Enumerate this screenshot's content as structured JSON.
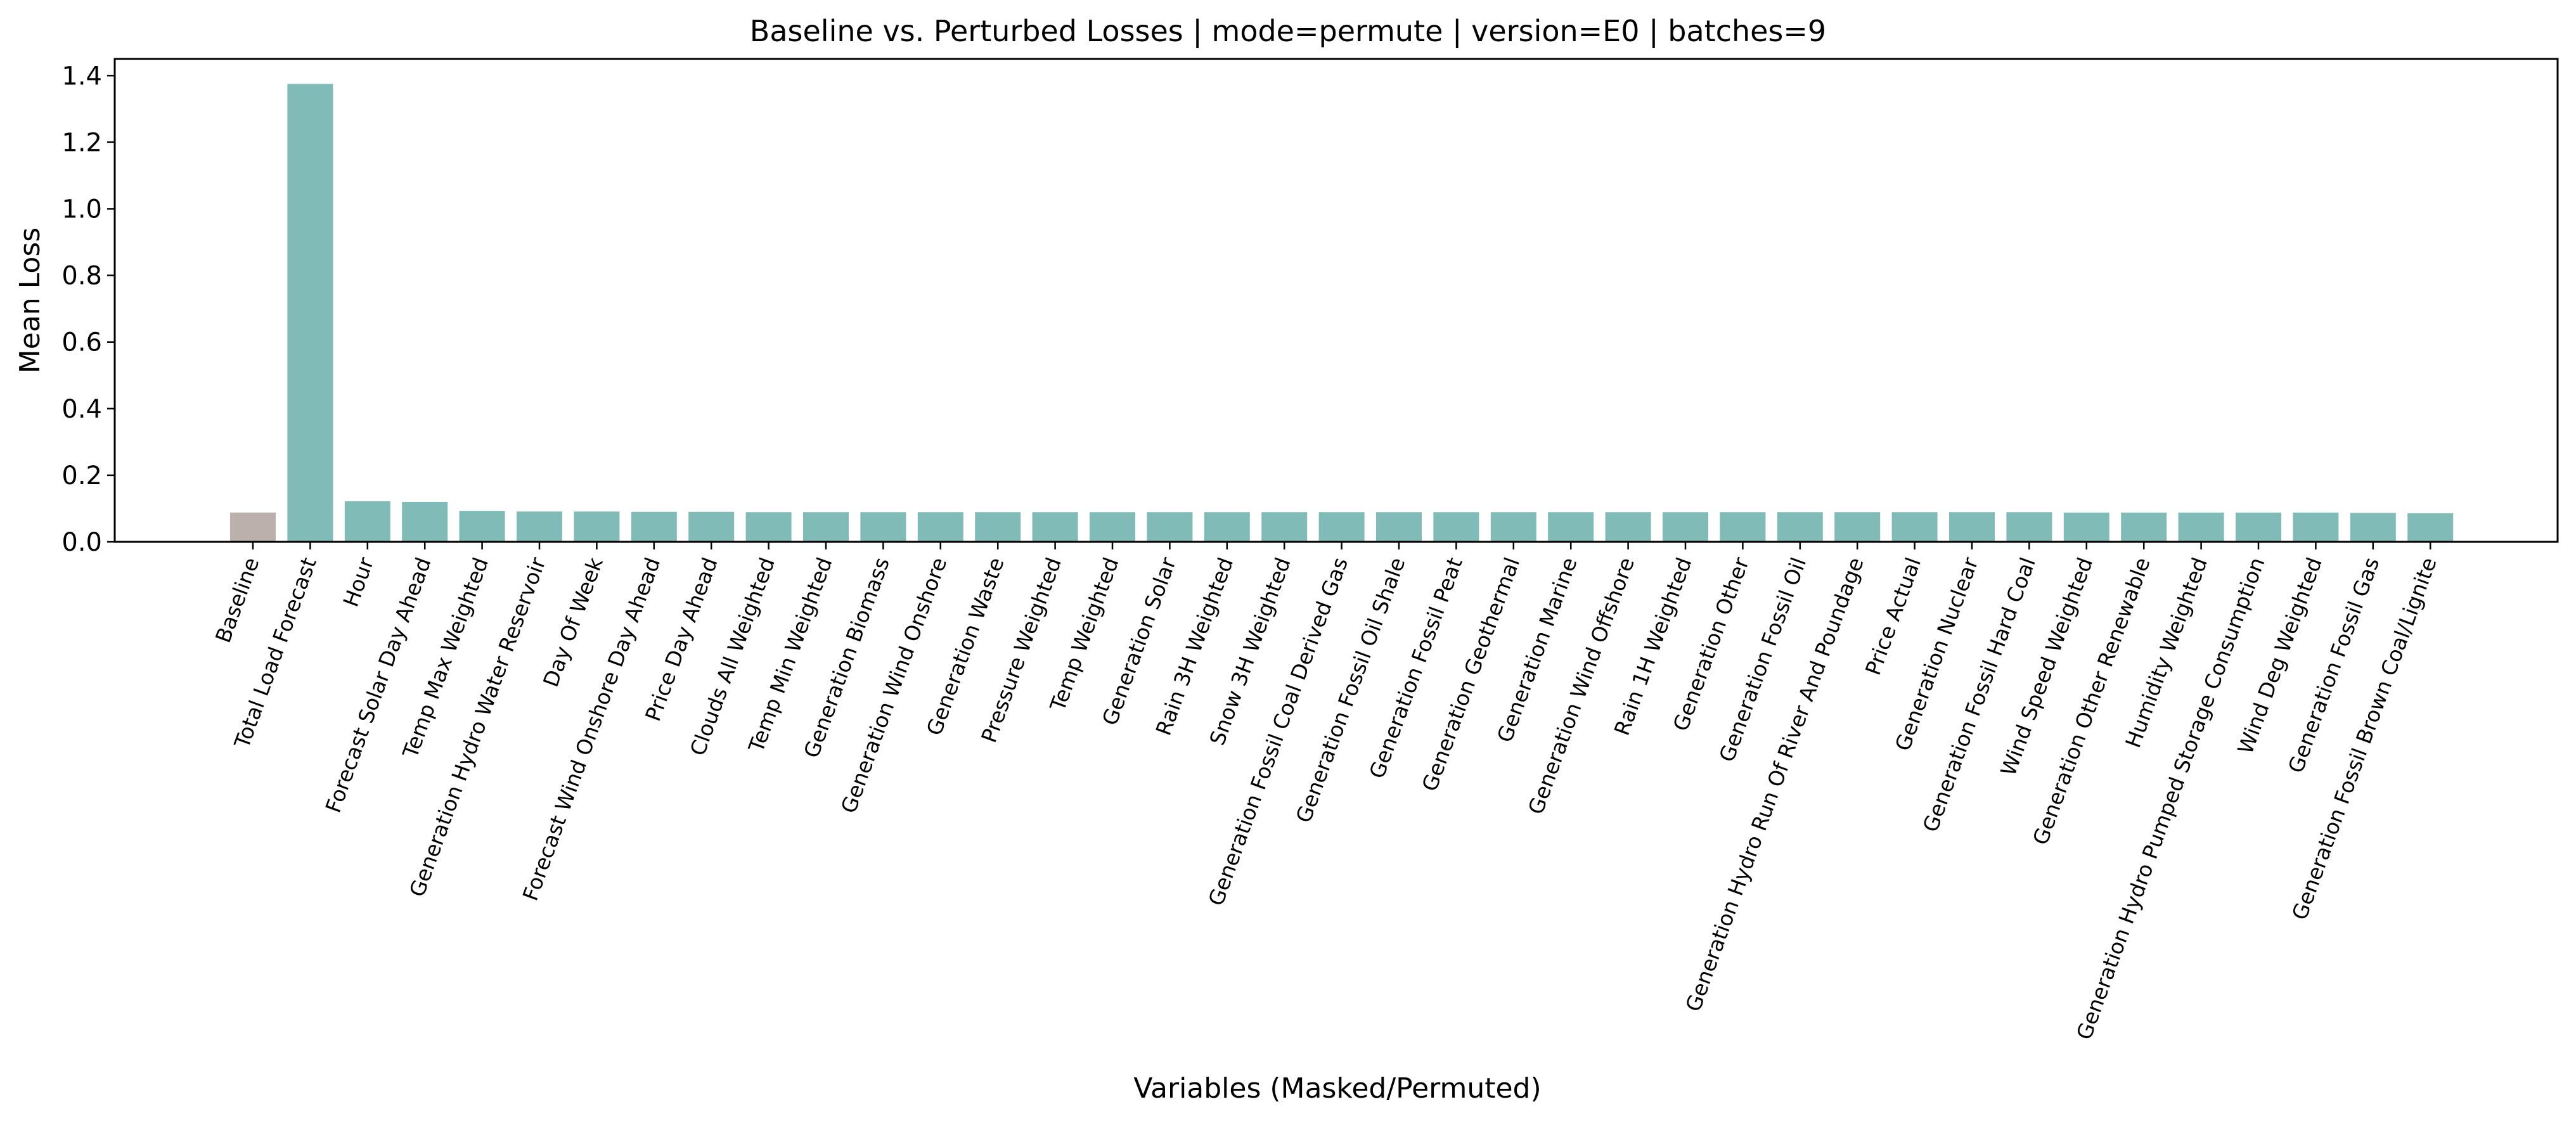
{
  "chart_data": {
    "type": "bar",
    "title": "Baseline vs. Perturbed Losses | mode=permute | version=E0 | batches=9",
    "xlabel": "Variables (Masked/Permuted)",
    "ylabel": "Mean Loss",
    "ylim": [
      0,
      1.45
    ],
    "yticks": [
      "0.0",
      "0.2",
      "0.4",
      "0.6",
      "0.8",
      "1.0",
      "1.2",
      "1.4"
    ],
    "grid": false,
    "legend": "none",
    "colors": {
      "baseline": "#bcb0ac",
      "perturbed": "#80bbb7"
    },
    "categories": [
      "Baseline",
      "Total Load Forecast",
      "Hour",
      "Forecast Solar Day Ahead",
      "Temp Max Weighted",
      "Generation Hydro Water Reservoir",
      "Day Of Week",
      "Forecast Wind Onshore Day Ahead",
      "Price Day Ahead",
      "Clouds All Weighted",
      "Temp Min Weighted",
      "Generation Biomass",
      "Generation Wind Onshore",
      "Generation Waste",
      "Pressure Weighted",
      "Temp Weighted",
      "Generation Solar",
      "Rain 3H Weighted",
      "Snow 3H Weighted",
      "Generation Fossil Coal Derived Gas",
      "Generation Fossil Oil Shale",
      "Generation Fossil Peat",
      "Generation Geothermal",
      "Generation Marine",
      "Generation Wind Offshore",
      "Rain 1H Weighted",
      "Generation Other",
      "Generation Fossil Oil",
      "Generation Hydro Run Of River And Poundage",
      "Price Actual",
      "Generation Nuclear",
      "Generation Fossil Hard Coal",
      "Wind Speed Weighted",
      "Generation Other Renewable",
      "Humidity Weighted",
      "Generation Hydro Pumped Storage Consumption",
      "Wind Deg Weighted",
      "Generation Fossil Gas",
      "Generation Fossil Brown Coal/Lignite"
    ],
    "values": [
      0.088,
      1.375,
      0.122,
      0.12,
      0.093,
      0.091,
      0.091,
      0.09,
      0.09,
      0.089,
      0.089,
      0.089,
      0.089,
      0.089,
      0.089,
      0.089,
      0.089,
      0.089,
      0.089,
      0.089,
      0.089,
      0.089,
      0.089,
      0.089,
      0.089,
      0.089,
      0.089,
      0.089,
      0.089,
      0.089,
      0.089,
      0.089,
      0.088,
      0.088,
      0.088,
      0.088,
      0.088,
      0.087,
      0.086
    ]
  }
}
